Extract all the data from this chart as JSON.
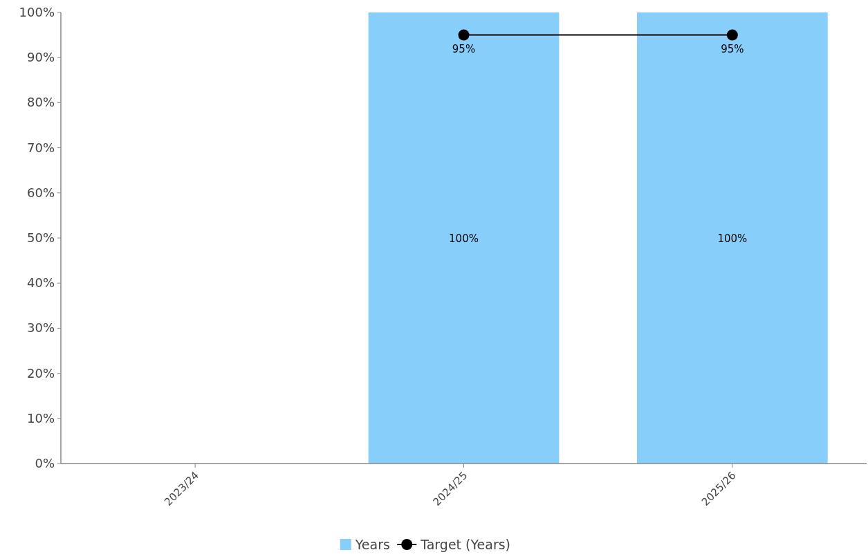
{
  "chart_data": {
    "type": "bar",
    "categories": [
      "2023/24",
      "2024/25",
      "2025/26"
    ],
    "series": [
      {
        "name": "Years",
        "color": "#87cefa",
        "values": [
          null,
          100,
          100
        ],
        "value_labels": [
          null,
          "100%",
          "100%"
        ]
      },
      {
        "name": "Target (Years)",
        "type": "line",
        "color": "#000000",
        "values": [
          null,
          95,
          95
        ],
        "value_labels": [
          null,
          "95%",
          "95%"
        ],
        "marker": "circle"
      }
    ],
    "ylim": [
      0,
      100
    ],
    "yticks": [
      {
        "value": 0,
        "label": "0%"
      },
      {
        "value": 10,
        "label": "10%"
      },
      {
        "value": 20,
        "label": "20%"
      },
      {
        "value": 30,
        "label": "30%"
      },
      {
        "value": 40,
        "label": "40%"
      },
      {
        "value": 50,
        "label": "50%"
      },
      {
        "value": 60,
        "label": "60%"
      },
      {
        "value": 70,
        "label": "70%"
      },
      {
        "value": 80,
        "label": "80%"
      },
      {
        "value": 90,
        "label": "90%"
      },
      {
        "value": 100,
        "label": "100%"
      }
    ],
    "grid": false,
    "legend": "bottom"
  }
}
